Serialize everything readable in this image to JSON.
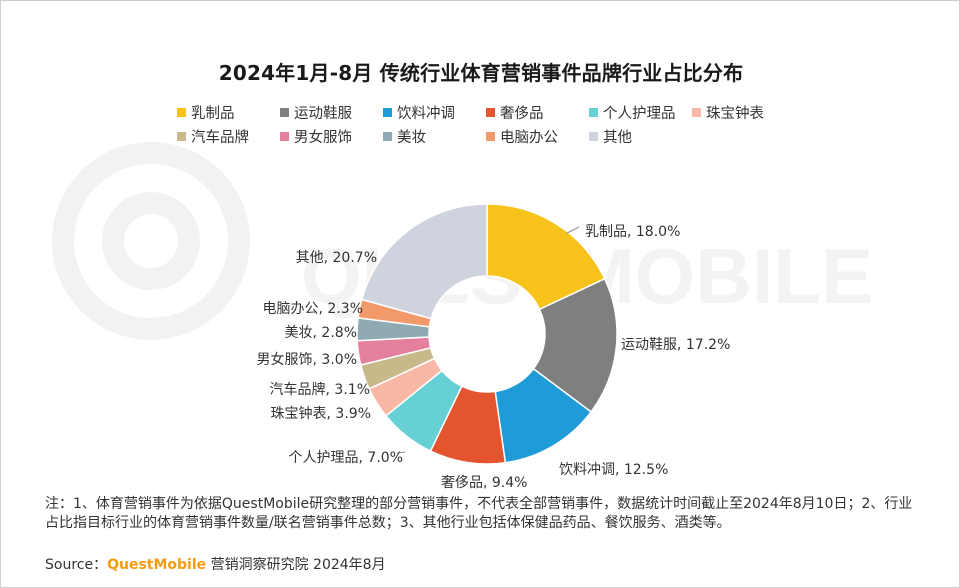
{
  "title": "2024年1月-8月 传统行业体育营销事件品牌行业占比分布",
  "watermark": "QUESTMOBILE",
  "chart_data": {
    "type": "pie",
    "variant": "donut",
    "title": "2024年1月-8月 传统行业体育营销事件品牌行业占比分布",
    "legend_position": "top",
    "categories": [
      "乳制品",
      "运动鞋服",
      "饮料冲调",
      "奢侈品",
      "个人护理品",
      "珠宝钟表",
      "汽车品牌",
      "男女服饰",
      "美妆",
      "电脑办公",
      "其他"
    ],
    "values": [
      18.0,
      17.2,
      12.5,
      9.4,
      7.0,
      3.9,
      3.1,
      3.0,
      2.8,
      2.3,
      20.7
    ],
    "labels": [
      "乳制品, 18.0%",
      "运动鞋服, 17.2%",
      "饮料冲调, 12.5%",
      "奢侈品, 9.4%",
      "个人护理品, 7.0%",
      "珠宝钟表, 3.9%",
      "汽车品牌, 3.1%",
      "男女服饰, 3.0%",
      "美妆, 2.8%",
      "电脑办公, 2.3%",
      "其他, 20.7%"
    ],
    "colors": [
      "#F7C21A",
      "#7F7F7F",
      "#1F9BD7",
      "#E4542F",
      "#66D0D4",
      "#F8B8A5",
      "#C8B98B",
      "#E57F9E",
      "#8FAAB2",
      "#F29A6B",
      "#CFD3DE"
    ],
    "unit": "%"
  },
  "note": "注：1、体育营销事件为依据QuestMobile研究整理的部分营销事件，不代表全部营销事件，数据统计时间截止至2024年8月10日；2、行业占比指目标行业的体育营销事件数量/联名营销事件总数；3、其他行业包括体保健品药品、餐饮服务、酒类等。",
  "source": {
    "prefix": "Source：",
    "brand": "QuestMobile",
    "suffix": " 营销洞察研究院 2024年8月"
  }
}
